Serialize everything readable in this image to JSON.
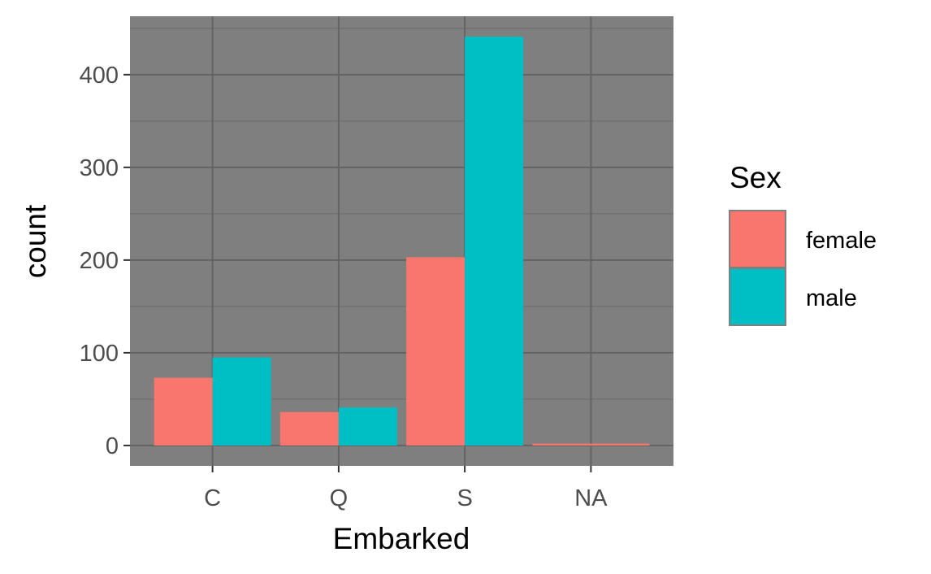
{
  "chart_data": {
    "type": "bar",
    "categories": [
      "C",
      "Q",
      "S",
      "NA"
    ],
    "series": [
      {
        "name": "female",
        "color": "#F8766D",
        "values": [
          73,
          36,
          203,
          2
        ]
      },
      {
        "name": "male",
        "color": "#00BFC4",
        "values": [
          95,
          41,
          441,
          0
        ]
      }
    ],
    "xlabel": "Embarked",
    "ylabel": "count",
    "ylim": [
      -22,
      463
    ],
    "yticks": [
      0,
      100,
      200,
      300,
      400
    ],
    "grid": true,
    "panel_color": "#7F7F7F",
    "legend": {
      "title": "Sex",
      "position": "right"
    }
  }
}
